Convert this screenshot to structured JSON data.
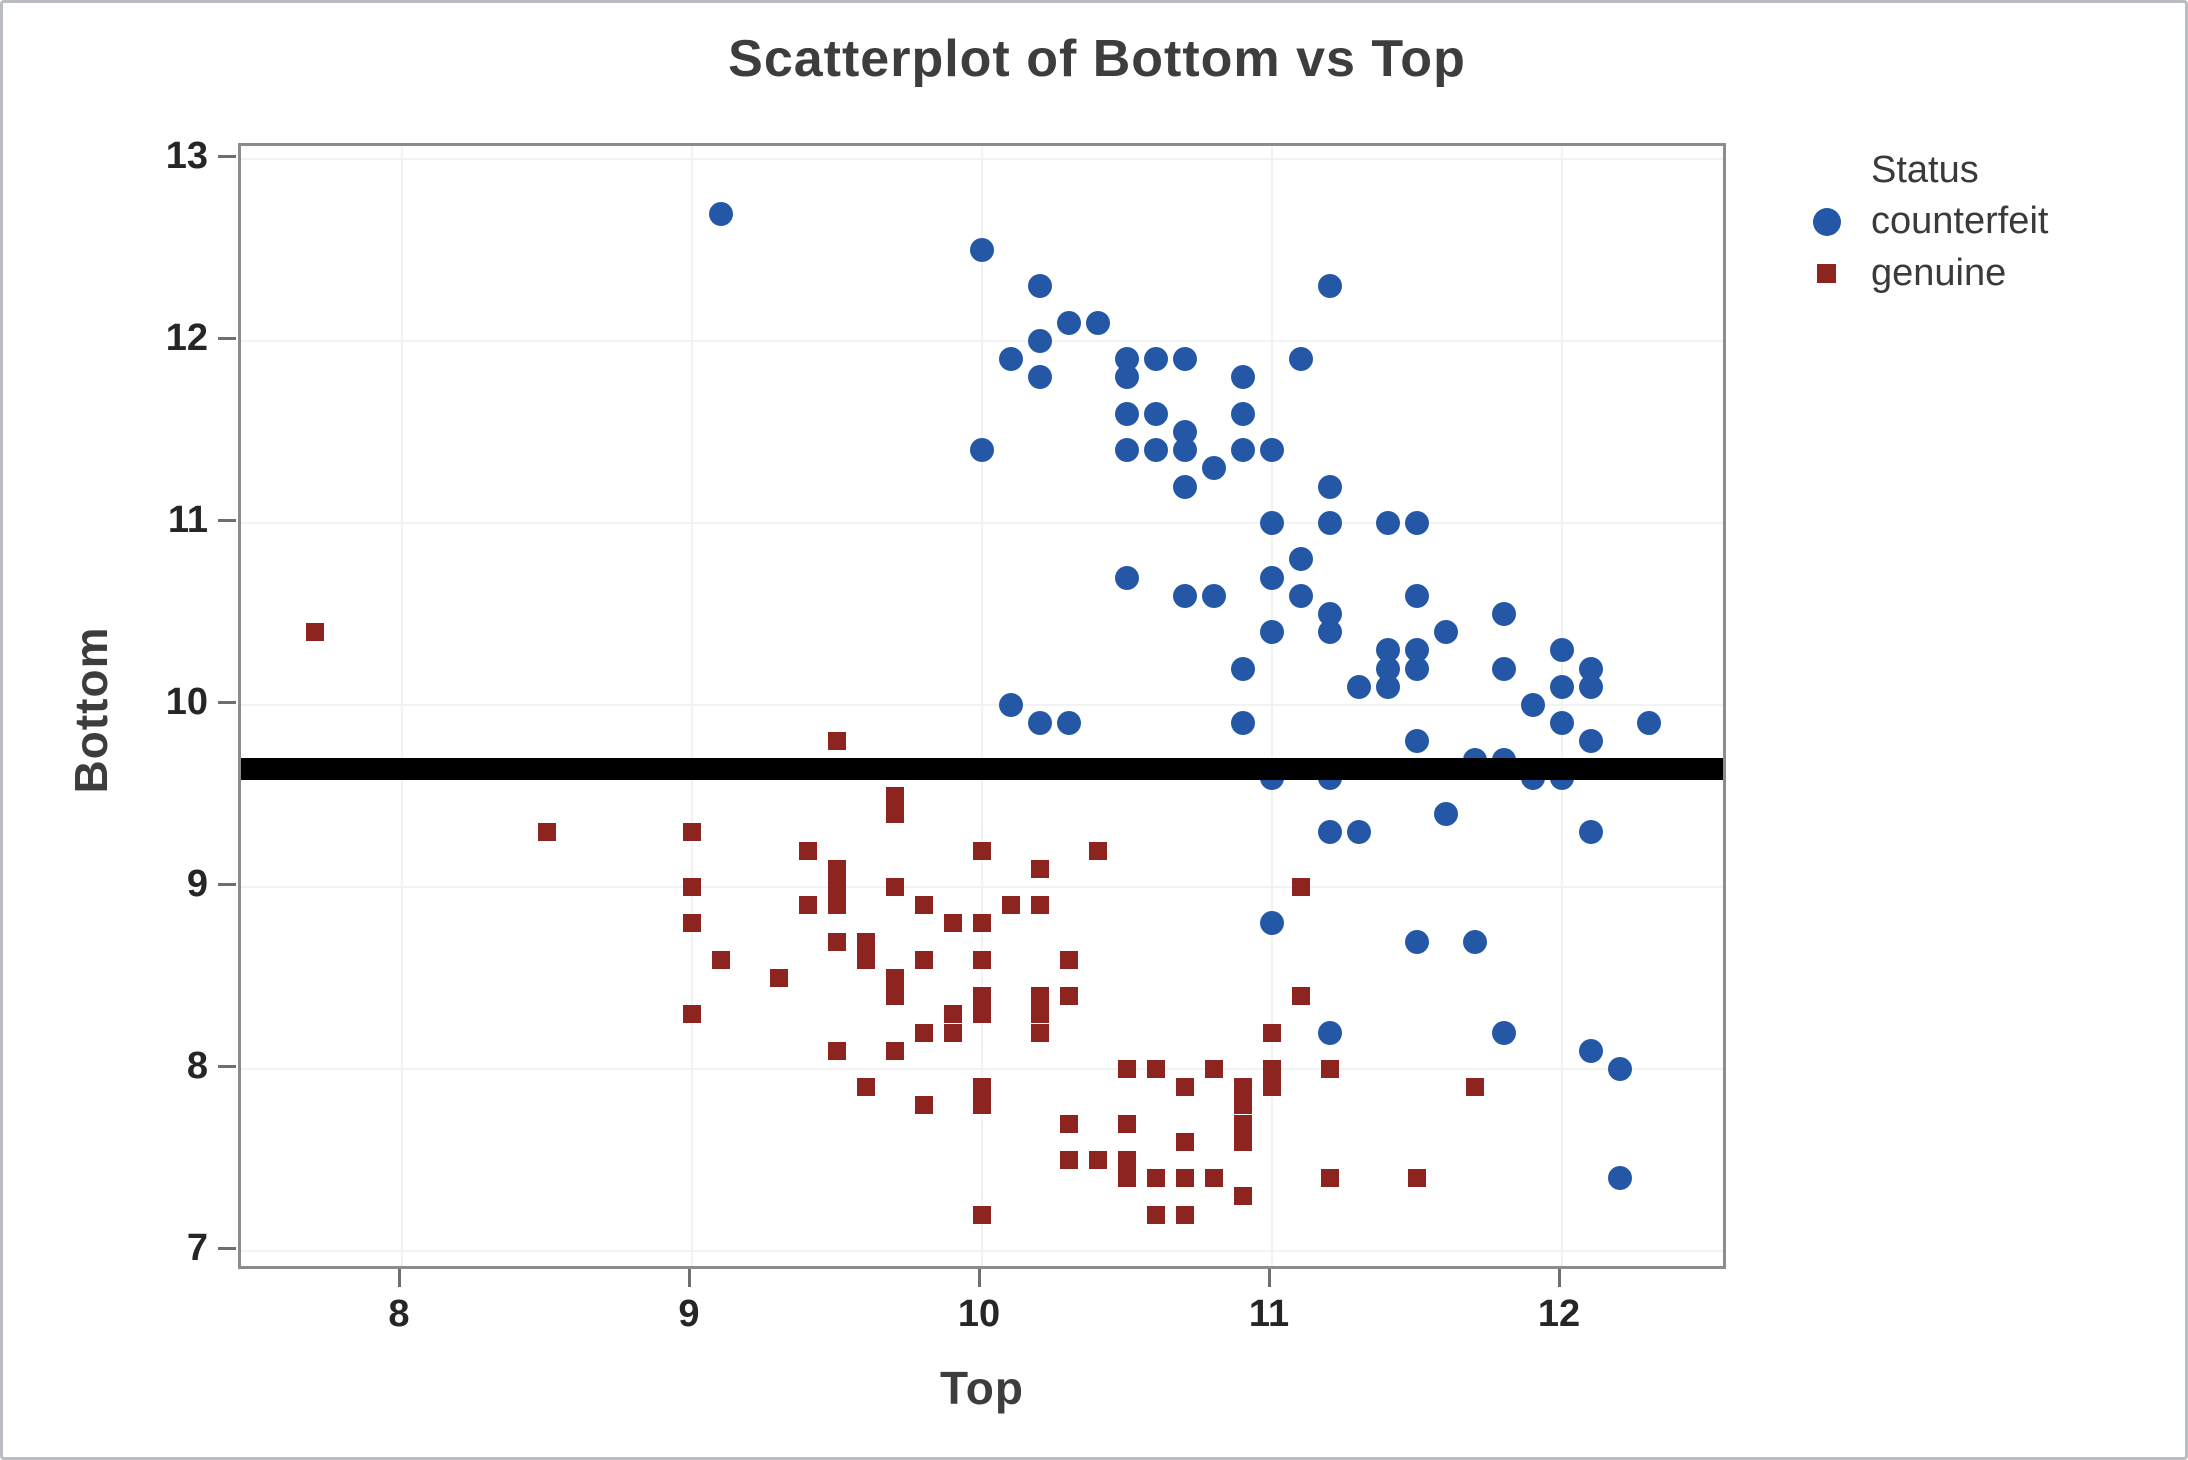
{
  "title": "Scatterplot of Bottom vs Top",
  "legend": {
    "title": "Status",
    "items": [
      {
        "label": "counterfeit",
        "marker": "circle",
        "color": "#2458a7"
      },
      {
        "label": "genuine",
        "marker": "square",
        "color": "#8e2420"
      }
    ]
  },
  "chart_data": {
    "type": "scatter",
    "title": "Scatterplot of Bottom vs Top",
    "xlabel": "Top",
    "ylabel": "Bottom",
    "xlim": [
      7.45,
      12.58
    ],
    "ylim": [
      6.88,
      13.07
    ],
    "x_ticks": [
      8,
      9,
      10,
      11,
      12
    ],
    "y_ticks": [
      7,
      8,
      9,
      10,
      11,
      12,
      13
    ],
    "grid": true,
    "legend_position": "right-top",
    "legend_title": "Status",
    "reference_line": {
      "orientation": "horizontal",
      "value": 9.65,
      "color": "#000000"
    },
    "series": [
      {
        "name": "counterfeit",
        "marker": "circle",
        "color": "#2458a7",
        "points": [
          [
            9.1,
            12.7
          ],
          [
            10.0,
            12.5
          ],
          [
            10.2,
            12.3
          ],
          [
            11.2,
            12.3
          ],
          [
            10.3,
            12.1
          ],
          [
            10.4,
            12.1
          ],
          [
            10.2,
            12.0
          ],
          [
            10.1,
            11.9
          ],
          [
            10.5,
            11.9
          ],
          [
            10.6,
            11.9
          ],
          [
            10.7,
            11.9
          ],
          [
            11.1,
            11.9
          ],
          [
            10.2,
            11.8
          ],
          [
            10.5,
            11.8
          ],
          [
            10.9,
            11.8
          ],
          [
            10.5,
            11.6
          ],
          [
            10.6,
            11.6
          ],
          [
            10.9,
            11.6
          ],
          [
            10.7,
            11.5
          ],
          [
            10.0,
            11.4
          ],
          [
            10.5,
            11.4
          ],
          [
            10.6,
            11.4
          ],
          [
            10.7,
            11.4
          ],
          [
            10.9,
            11.4
          ],
          [
            11.0,
            11.4
          ],
          [
            10.8,
            11.3
          ],
          [
            10.7,
            11.2
          ],
          [
            11.2,
            11.2
          ],
          [
            11.0,
            11.0
          ],
          [
            11.2,
            11.0
          ],
          [
            11.4,
            11.0
          ],
          [
            11.5,
            11.0
          ],
          [
            11.1,
            10.8
          ],
          [
            10.5,
            10.7
          ],
          [
            11.0,
            10.7
          ],
          [
            10.7,
            10.6
          ],
          [
            10.8,
            10.6
          ],
          [
            11.1,
            10.6
          ],
          [
            11.5,
            10.6
          ],
          [
            11.2,
            10.5
          ],
          [
            11.8,
            10.5
          ],
          [
            11.0,
            10.4
          ],
          [
            11.2,
            10.4
          ],
          [
            11.6,
            10.4
          ],
          [
            11.4,
            10.3
          ],
          [
            11.5,
            10.3
          ],
          [
            12.0,
            10.3
          ],
          [
            10.9,
            10.2
          ],
          [
            11.4,
            10.2
          ],
          [
            11.5,
            10.2
          ],
          [
            11.8,
            10.2
          ],
          [
            12.1,
            10.2
          ],
          [
            11.3,
            10.1
          ],
          [
            11.4,
            10.1
          ],
          [
            12.0,
            10.1
          ],
          [
            12.1,
            10.1
          ],
          [
            10.1,
            10.0
          ],
          [
            11.9,
            10.0
          ],
          [
            10.2,
            9.9
          ],
          [
            10.3,
            9.9
          ],
          [
            10.9,
            9.9
          ],
          [
            12.0,
            9.9
          ],
          [
            12.3,
            9.9
          ],
          [
            11.5,
            9.8
          ],
          [
            12.1,
            9.8
          ],
          [
            11.7,
            9.7
          ],
          [
            11.8,
            9.7
          ],
          [
            11.0,
            9.6
          ],
          [
            11.2,
            9.6
          ],
          [
            11.9,
            9.6
          ],
          [
            12.0,
            9.6
          ],
          [
            11.6,
            9.4
          ],
          [
            11.2,
            9.3
          ],
          [
            11.3,
            9.3
          ],
          [
            12.1,
            9.3
          ],
          [
            11.0,
            8.8
          ],
          [
            11.5,
            8.7
          ],
          [
            11.7,
            8.7
          ],
          [
            11.2,
            8.2
          ],
          [
            11.8,
            8.2
          ],
          [
            12.1,
            8.1
          ],
          [
            12.2,
            8.0
          ],
          [
            12.2,
            7.4
          ]
        ]
      },
      {
        "name": "genuine",
        "marker": "square",
        "color": "#8e2420",
        "points": [
          [
            7.7,
            10.4
          ],
          [
            9.5,
            9.8
          ],
          [
            8.5,
            9.3
          ],
          [
            9.0,
            9.3
          ],
          [
            9.7,
            9.5
          ],
          [
            9.7,
            9.4
          ],
          [
            9.4,
            9.2
          ],
          [
            10.0,
            9.2
          ],
          [
            10.4,
            9.2
          ],
          [
            9.5,
            9.1
          ],
          [
            10.2,
            9.1
          ],
          [
            9.0,
            9.0
          ],
          [
            9.5,
            9.0
          ],
          [
            9.7,
            9.0
          ],
          [
            11.1,
            9.0
          ],
          [
            9.4,
            8.9
          ],
          [
            9.5,
            8.9
          ],
          [
            9.8,
            8.9
          ],
          [
            10.1,
            8.9
          ],
          [
            10.2,
            8.9
          ],
          [
            9.0,
            8.8
          ],
          [
            9.9,
            8.8
          ],
          [
            10.0,
            8.8
          ],
          [
            9.5,
            8.7
          ],
          [
            9.6,
            8.7
          ],
          [
            9.1,
            8.6
          ],
          [
            9.6,
            8.6
          ],
          [
            9.8,
            8.6
          ],
          [
            10.0,
            8.6
          ],
          [
            10.3,
            8.6
          ],
          [
            9.3,
            8.5
          ],
          [
            9.7,
            8.5
          ],
          [
            9.7,
            8.4
          ],
          [
            10.0,
            8.4
          ],
          [
            10.2,
            8.4
          ],
          [
            10.3,
            8.4
          ],
          [
            11.1,
            8.4
          ],
          [
            9.0,
            8.3
          ],
          [
            9.9,
            8.3
          ],
          [
            10.0,
            8.3
          ],
          [
            10.2,
            8.3
          ],
          [
            9.8,
            8.2
          ],
          [
            9.9,
            8.2
          ],
          [
            10.2,
            8.2
          ],
          [
            11.0,
            8.2
          ],
          [
            9.5,
            8.1
          ],
          [
            9.7,
            8.1
          ],
          [
            10.5,
            8.0
          ],
          [
            10.6,
            8.0
          ],
          [
            10.8,
            8.0
          ],
          [
            11.0,
            8.0
          ],
          [
            11.2,
            8.0
          ],
          [
            9.6,
            7.9
          ],
          [
            10.0,
            7.9
          ],
          [
            10.7,
            7.9
          ],
          [
            10.9,
            7.9
          ],
          [
            11.0,
            7.9
          ],
          [
            11.7,
            7.9
          ],
          [
            9.8,
            7.8
          ],
          [
            10.0,
            7.8
          ],
          [
            10.9,
            7.8
          ],
          [
            10.3,
            7.7
          ],
          [
            10.5,
            7.7
          ],
          [
            10.9,
            7.7
          ],
          [
            10.7,
            7.6
          ],
          [
            10.9,
            7.6
          ],
          [
            10.3,
            7.5
          ],
          [
            10.4,
            7.5
          ],
          [
            10.5,
            7.5
          ],
          [
            10.5,
            7.4
          ],
          [
            10.6,
            7.4
          ],
          [
            10.7,
            7.4
          ],
          [
            10.8,
            7.4
          ],
          [
            11.2,
            7.4
          ],
          [
            11.5,
            7.4
          ],
          [
            10.9,
            7.3
          ],
          [
            10.0,
            7.2
          ],
          [
            10.6,
            7.2
          ],
          [
            10.7,
            7.2
          ]
        ]
      }
    ]
  }
}
